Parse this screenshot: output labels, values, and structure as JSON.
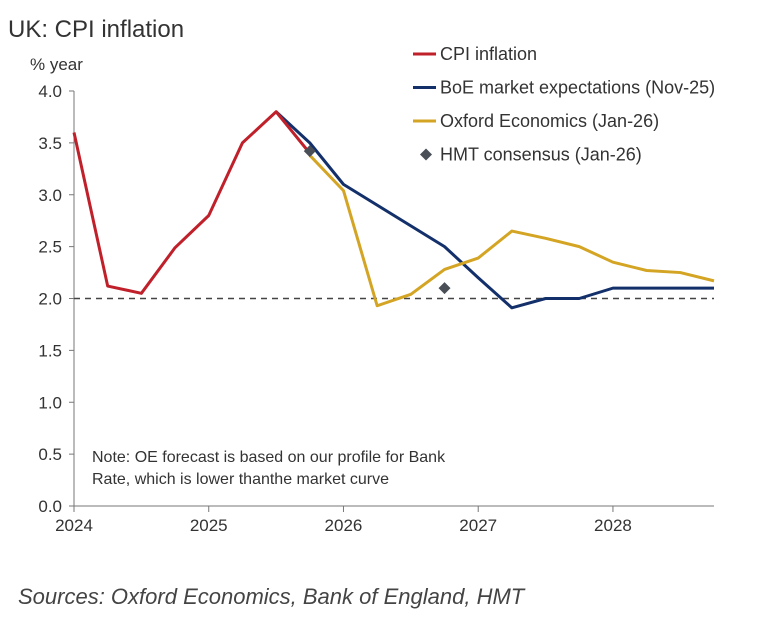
{
  "chart_data": {
    "type": "line",
    "title": "UK: CPI inflation",
    "ylabel": "% year",
    "xlabel": "",
    "ylim": [
      0,
      4.0
    ],
    "xlim": [
      2024.0,
      2028.75
    ],
    "yticks": [
      "0.0",
      "0.5",
      "1.0",
      "1.5",
      "2.0",
      "2.5",
      "3.0",
      "3.5",
      "4.0"
    ],
    "xticks": [
      "2024",
      "2025",
      "2026",
      "2027",
      "2028"
    ],
    "reference_line": {
      "y": 2.0,
      "style": "dashed"
    },
    "legend_position": "top-right",
    "series": [
      {
        "name": "CPI inflation",
        "color": "#c0202a",
        "type": "line",
        "x": [
          2024.0,
          2024.25,
          2024.5,
          2024.75,
          2025.0,
          2025.25,
          2025.5,
          2025.75
        ],
        "values": [
          3.6,
          2.12,
          2.05,
          2.49,
          2.8,
          3.5,
          3.8,
          3.4
        ]
      },
      {
        "name": "BoE market expectations (Nov-25)",
        "color": "#13306b",
        "type": "line",
        "x": [
          2025.5,
          2025.75,
          2026.0,
          2026.25,
          2026.5,
          2026.75,
          2027.0,
          2027.25,
          2027.5,
          2027.75,
          2028.0,
          2028.25,
          2028.5,
          2028.75
        ],
        "values": [
          3.8,
          3.5,
          3.1,
          2.9,
          2.7,
          2.5,
          2.2,
          1.91,
          2.0,
          2.0,
          2.1,
          2.1,
          2.1,
          2.1
        ]
      },
      {
        "name": "Oxford Economics (Jan-26)",
        "color": "#d4a524",
        "type": "line",
        "x": [
          2025.75,
          2026.0,
          2026.25,
          2026.5,
          2026.75,
          2027.0,
          2027.25,
          2027.5,
          2027.75,
          2028.0,
          2028.25,
          2028.5,
          2028.75
        ],
        "values": [
          3.38,
          3.04,
          1.93,
          2.04,
          2.28,
          2.39,
          2.65,
          2.58,
          2.5,
          2.35,
          2.27,
          2.25,
          2.17
        ]
      },
      {
        "name": "HMT consensus (Jan-26)",
        "color": "#4a4f57",
        "type": "scatter",
        "x": [
          2025.75,
          2026.75
        ],
        "values": [
          3.42,
          2.1
        ]
      }
    ],
    "annotation": [
      "Note: OE forecast is based on our profile for Bank",
      "Rate, which is lower thanthe market curve"
    ],
    "source": "Sources: Oxford Economics, Bank of England, HMT"
  }
}
